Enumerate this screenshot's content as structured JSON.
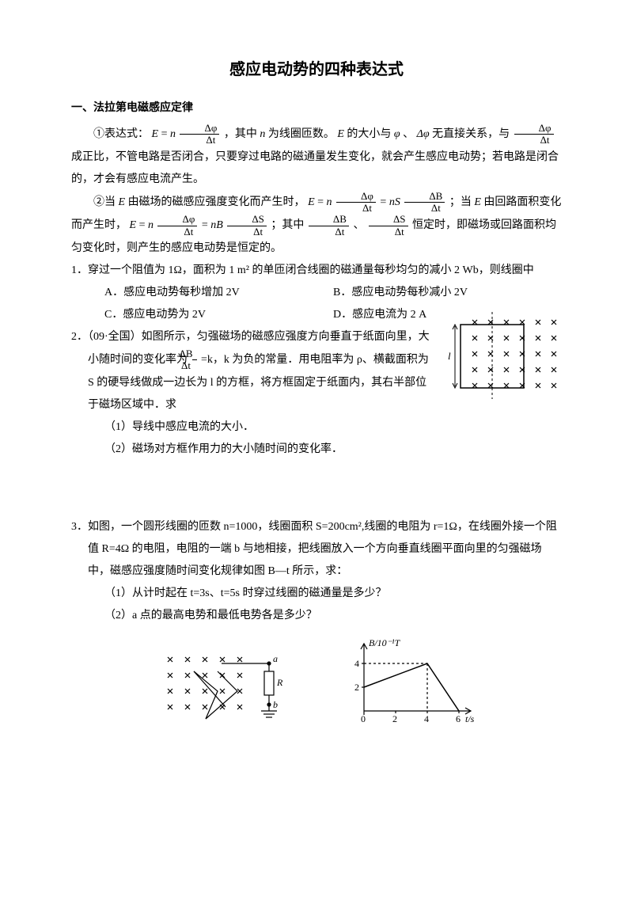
{
  "title": "感应电动势的四种表达式",
  "section1": {
    "heading": "一、法拉第电磁感应定律",
    "p1_a": "①表达式：",
    "p1_b": "，其中 ",
    "p1_c": " 为线圈匝数。",
    "p1_d": " 的大小与 ",
    "p1_e": "、",
    "p1_f": " 无直接关系，与 ",
    "p1_g": " 成正比，不管电路是否闭合，只要穿过电路的磁通量发生变化，就会产生感应电动势；若电路是闭合的，才会有感应电流产生。",
    "p2_a": "②当 ",
    "p2_b": " 由磁场的磁感应强度变化而产生时，",
    "p2_c": "；当 ",
    "p2_d": " 由回路面积变化而产生时，",
    "p2_e": "；其中 ",
    "p2_f": "、",
    "p2_g": " 恒定时，即磁场或回路面积均匀变化时，则产生的感应电动势是恒定的。"
  },
  "q1": {
    "text": "1．穿过一个阻值为 1Ω，面积为 1 m² 的单匝闭合线圈的磁通量每秒均匀的减小 2 Wb，则线圈中",
    "A": "A．感应电动势每秒增加 2V",
    "B": "B．感应电动势每秒减小 2V",
    "C": "C．感应电动势为 2V",
    "D": "D．感应电流为 2 A"
  },
  "q2": {
    "text_a": "2．（09·全国）如图所示，匀强磁场的磁感应强度方向垂直于纸面向里，大小随时间的变化率为",
    "text_b": "=k，k 为负的常量．用电阻率为 ρ、横截面积为 S 的硬导线做成一边长为 l 的方框，将方框固定于纸面内，其右半部位于磁场区域中．求",
    "sub1": "（1）导线中感应电流的大小．",
    "sub2": "（2）磁场对方框作用力的大小随时间的变化率．",
    "diagram": {
      "type": "schematic",
      "cross_color": "#000000",
      "line_color": "#000000",
      "label": "l"
    }
  },
  "q3": {
    "text": "3．如图，一个圆形线圈的匝数 n=1000，线圈面积 S=200cm²,线圈的电阻为 r=1Ω，在线圈外接一个阻值 R=4Ω 的电阻，电阻的一端 b 与地相接，把线圈放入一个方向垂直线圈平面向里的匀强磁场中，磁感应强度随时间变化规律如图 B—t 所示，求：",
    "sub1": "（1）从计时起在 t=3s、t=5s 时穿过线圈的磁通量是多少？",
    "sub2": "（2）a 点的最高电势和最低电势各是多少？",
    "circuit": {
      "type": "schematic",
      "labels": {
        "a": "a",
        "b": "b",
        "R": "R"
      }
    },
    "graph": {
      "type": "line",
      "ylabel": "B/10⁻¹T",
      "xlabel": "t/s",
      "xticks": [
        0,
        2,
        4,
        6
      ],
      "yticks": [
        2,
        4
      ],
      "points": [
        [
          0,
          2
        ],
        [
          4,
          4
        ],
        [
          6,
          0
        ]
      ],
      "line_color": "#000000",
      "axis_color": "#000000"
    }
  },
  "formula_parts": {
    "E": "E",
    "n": "n",
    "phi": "φ",
    "dphi": "Δφ",
    "dt": "Δt",
    "dB": "ΔB",
    "dS": "ΔS",
    "eq": " = ",
    "nS": "nS",
    "nB": "nB"
  }
}
